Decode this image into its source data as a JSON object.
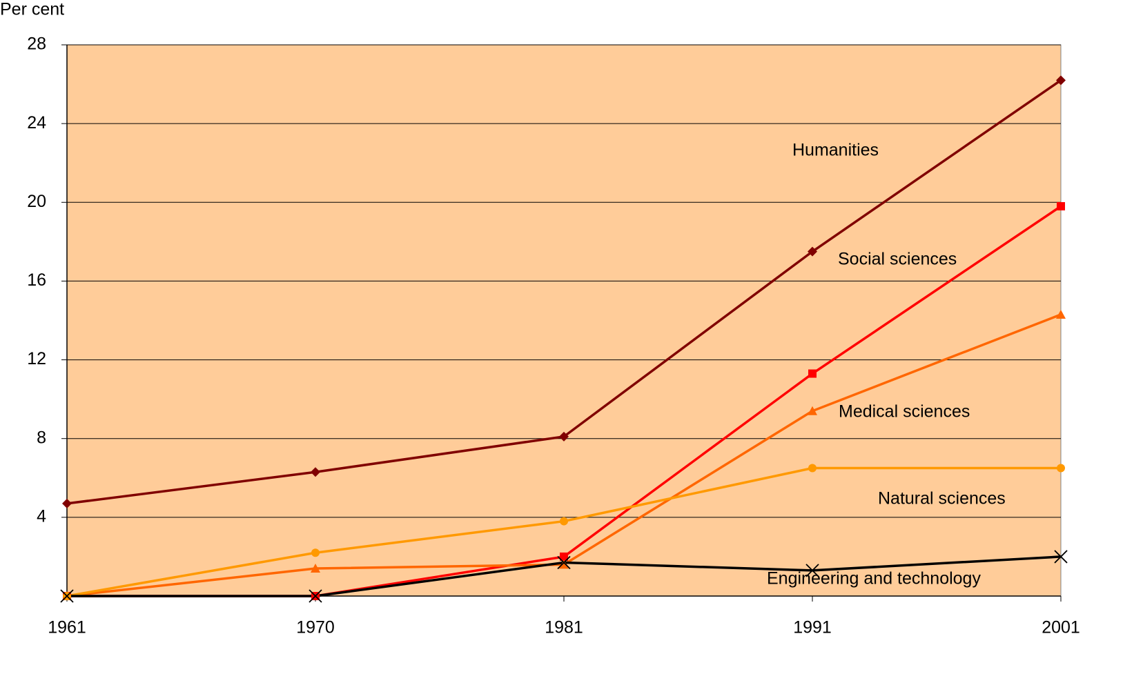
{
  "chart_data": {
    "type": "line",
    "y_label": "Per cent",
    "categories": [
      "1961",
      "1970",
      "1981",
      "1991",
      "2001"
    ],
    "ylim": [
      0,
      28
    ],
    "yticks": [
      4,
      8,
      12,
      16,
      20,
      24,
      28
    ],
    "grid": true,
    "background": "#ffcc99",
    "series": [
      {
        "name": "Humanities",
        "color": "#800000",
        "marker": "diamond",
        "values": [
          4.7,
          6.3,
          8.1,
          17.5,
          26.2
        ]
      },
      {
        "name": "Social sciences",
        "color": "#ff0000",
        "marker": "square",
        "values": [
          0,
          0,
          2.0,
          11.3,
          19.8
        ]
      },
      {
        "name": "Medical sciences",
        "color": "#ff6600",
        "marker": "triangle",
        "values": [
          0,
          1.4,
          1.6,
          9.4,
          14.3
        ]
      },
      {
        "name": "Natural sciences",
        "color": "#ff9900",
        "marker": "circle",
        "values": [
          0,
          2.2,
          3.8,
          6.5,
          6.5
        ]
      },
      {
        "name": "Engineering and technology",
        "color": "#000000",
        "marker": "x",
        "values": [
          0,
          0,
          1.7,
          1.3,
          2.0
        ]
      }
    ]
  }
}
